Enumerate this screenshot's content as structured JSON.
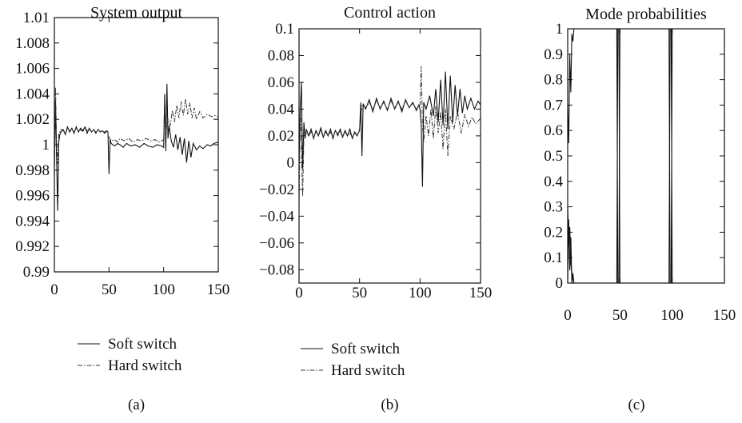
{
  "chart_data": [
    {
      "type": "line",
      "title": "System output",
      "xlabel": "",
      "ylabel": "",
      "xlim": [
        0,
        150
      ],
      "ylim": [
        0.99,
        1.01
      ],
      "xticks": [
        0,
        50,
        100,
        150
      ],
      "xtick_labels": [
        "0",
        "50",
        "100",
        "150"
      ],
      "yticks": [
        0.99,
        0.992,
        0.994,
        0.996,
        0.998,
        1.0,
        1.002,
        1.004,
        1.006,
        1.008,
        1.01
      ],
      "ytick_labels": [
        "0.99",
        "0.992",
        "0.994",
        "0.996",
        "0.998",
        "1",
        "1.002",
        "1.004",
        "1.006",
        "1.008",
        "1.01"
      ],
      "grid": false,
      "legend": "below",
      "caption": "(a)",
      "series": [
        {
          "name": "Soft switch",
          "style": "solid",
          "x": [
            0,
            1,
            2,
            3,
            4,
            5,
            6,
            8,
            10,
            12,
            14,
            16,
            18,
            20,
            22,
            24,
            26,
            28,
            30,
            32,
            34,
            36,
            38,
            40,
            42,
            44,
            46,
            48,
            49,
            50,
            51,
            52,
            55,
            58,
            60,
            63,
            66,
            70,
            74,
            78,
            82,
            86,
            90,
            94,
            98,
            100,
            101,
            102,
            103,
            104,
            105,
            107,
            109,
            111,
            113,
            115,
            117,
            119,
            121,
            123,
            125,
            127,
            130,
            133,
            136,
            140,
            143,
            146,
            150
          ],
          "y": [
            0.9975,
            1.0035,
            0.9992,
            0.9948,
            1.0002,
            1.0008,
            1.001,
            1.0012,
            1.0008,
            1.0014,
            1.001,
            1.0013,
            1.0009,
            1.0014,
            1.001,
            1.0013,
            1.0011,
            1.0014,
            1.0009,
            1.0013,
            1.001,
            1.0012,
            1.0009,
            1.0012,
            1.001,
            1.0011,
            1.0009,
            1.0011,
            1.001,
            0.9977,
            1.0004,
            1.0001,
            0.9999,
            1.0001,
            1.0,
            0.9998,
            1.0001,
            0.9999,
            1.0,
            0.9998,
            1.0001,
            0.9999,
            0.9998,
            1.0,
            0.9999,
            0.9998,
            1.004,
            0.9995,
            1.0048,
            1.0005,
            1.0015,
            1.0003,
            0.9998,
            1.0008,
            0.9996,
            1.0006,
            0.9992,
            1.0005,
            0.9986,
            1.0003,
            0.999,
            1.0001,
            0.9996,
            0.9999,
            0.9997,
            1.0,
            0.9999,
            1.0001,
            1.0002
          ]
        },
        {
          "name": "Hard switch",
          "style": "dash-dot",
          "x": [
            0,
            1,
            2,
            3,
            4,
            5,
            6,
            8,
            10,
            12,
            14,
            16,
            18,
            20,
            22,
            24,
            26,
            28,
            30,
            32,
            34,
            36,
            38,
            40,
            42,
            44,
            46,
            48,
            50,
            52,
            55,
            58,
            60,
            64,
            68,
            72,
            76,
            80,
            84,
            88,
            92,
            96,
            100,
            101,
            102,
            104,
            106,
            108,
            110,
            112,
            114,
            116,
            118,
            120,
            122,
            124,
            126,
            128,
            130,
            133,
            136,
            140,
            144,
            147,
            150
          ],
          "y": [
            0.998,
            1.0045,
            1.0005,
            0.9985,
            1.0008,
            1.001,
            1.0012,
            1.0011,
            1.001,
            1.0013,
            1.0011,
            1.0012,
            1.001,
            1.0013,
            1.0011,
            1.0012,
            1.001,
            1.0013,
            1.0011,
            1.0012,
            1.001,
            1.0012,
            1.001,
            1.0012,
            1.001,
            1.0011,
            1.001,
            1.0011,
            1.0006,
            1.0003,
            1.0004,
            1.0002,
            1.0005,
            1.0003,
            1.0005,
            1.0002,
            1.0004,
            1.0003,
            1.0005,
            1.0003,
            1.0004,
            1.0002,
            1.0004,
            1.0035,
            1.001,
            1.002,
            1.0015,
            1.0027,
            1.0018,
            1.0031,
            1.0021,
            1.0034,
            1.0023,
            1.0036,
            1.0024,
            1.0033,
            1.0021,
            1.0029,
            1.002,
            1.0026,
            1.0021,
            1.0024,
            1.0022,
            1.0023,
            1.0022
          ]
        }
      ]
    },
    {
      "type": "line",
      "title": "Control action",
      "xlabel": "",
      "ylabel": "",
      "xlim": [
        0,
        150
      ],
      "ylim": [
        -0.09,
        0.1
      ],
      "xticks": [
        0,
        50,
        100,
        150
      ],
      "xtick_labels": [
        "0",
        "50",
        "100",
        "150"
      ],
      "yticks": [
        -0.08,
        -0.06,
        -0.04,
        -0.02,
        0,
        0.02,
        0.04,
        0.06,
        0.08,
        0.1
      ],
      "ytick_labels": [
        "−0.08",
        "−0.06",
        "−0.04",
        "−0.02",
        "0",
        "0.02",
        "0.04",
        "0.06",
        "0.08",
        "0.1"
      ],
      "grid": false,
      "legend": "below",
      "caption": "(b)",
      "series": [
        {
          "name": "Soft switch",
          "style": "solid",
          "x": [
            0,
            1,
            2,
            3,
            4,
            5,
            6,
            8,
            10,
            12,
            14,
            16,
            18,
            20,
            22,
            24,
            26,
            28,
            30,
            32,
            34,
            36,
            38,
            40,
            42,
            44,
            46,
            48,
            50,
            51,
            52,
            53,
            55,
            58,
            61,
            64,
            67,
            70,
            73,
            76,
            79,
            82,
            85,
            88,
            91,
            94,
            97,
            99,
            100,
            101,
            102,
            103,
            105,
            108,
            111,
            113,
            115,
            117,
            119,
            121,
            123,
            125,
            127,
            129,
            131,
            133,
            135,
            137,
            139,
            142,
            145,
            148,
            150
          ],
          "y": [
            0.0,
            0.04,
            0.06,
            -0.005,
            0.03,
            0.018,
            0.025,
            0.02,
            0.025,
            0.018,
            0.024,
            0.02,
            0.026,
            0.019,
            0.024,
            0.02,
            0.025,
            0.018,
            0.024,
            0.021,
            0.025,
            0.019,
            0.024,
            0.02,
            0.025,
            0.018,
            0.023,
            0.02,
            0.024,
            0.045,
            0.005,
            0.044,
            0.04,
            0.047,
            0.038,
            0.048,
            0.04,
            0.046,
            0.039,
            0.048,
            0.04,
            0.046,
            0.038,
            0.047,
            0.041,
            0.045,
            0.039,
            0.043,
            0.04,
            0.028,
            -0.018,
            0.045,
            0.04,
            0.05,
            0.035,
            0.055,
            0.03,
            0.062,
            0.028,
            0.068,
            0.025,
            0.065,
            0.03,
            0.058,
            0.035,
            0.055,
            0.037,
            0.05,
            0.04,
            0.048,
            0.04,
            0.046,
            0.043
          ]
        },
        {
          "name": "Hard switch",
          "style": "dash-dot",
          "x": [
            0,
            1,
            2,
            3,
            4,
            6,
            8,
            10,
            12,
            14,
            16,
            18,
            20,
            22,
            24,
            26,
            28,
            30,
            32,
            34,
            36,
            38,
            40,
            42,
            44,
            46,
            48,
            50,
            52,
            55,
            58,
            61,
            64,
            67,
            70,
            73,
            76,
            79,
            82,
            85,
            88,
            91,
            94,
            97,
            100,
            101,
            102,
            103,
            105,
            107,
            109,
            111,
            113,
            115,
            117,
            119,
            121,
            123,
            125,
            128,
            131,
            134,
            137,
            140,
            143,
            146,
            150
          ],
          "y": [
            -0.04,
            0.045,
            0.01,
            -0.025,
            0.02,
            0.022,
            0.02,
            0.023,
            0.019,
            0.023,
            0.02,
            0.024,
            0.019,
            0.023,
            0.02,
            0.023,
            0.019,
            0.024,
            0.02,
            0.023,
            0.019,
            0.023,
            0.02,
            0.022,
            0.019,
            0.022,
            0.02,
            0.025,
            0.043,
            0.041,
            0.045,
            0.04,
            0.046,
            0.041,
            0.045,
            0.04,
            0.046,
            0.041,
            0.045,
            0.04,
            0.046,
            0.041,
            0.044,
            0.04,
            0.043,
            0.072,
            0.028,
            0.015,
            0.035,
            0.02,
            0.04,
            0.018,
            0.042,
            0.022,
            0.038,
            0.01,
            0.04,
            0.005,
            0.035,
            0.025,
            0.038,
            0.022,
            0.036,
            0.027,
            0.034,
            0.029,
            0.033
          ]
        }
      ]
    },
    {
      "type": "line",
      "title": "Mode probabilities",
      "xlabel": "",
      "ylabel": "",
      "xlim": [
        0,
        150
      ],
      "ylim": [
        0,
        1
      ],
      "xticks": [
        0,
        50,
        100,
        150
      ],
      "xtick_labels": [
        "0",
        "50",
        "100",
        "150"
      ],
      "yticks": [
        0,
        0.1,
        0.2,
        0.3,
        0.4,
        0.5,
        0.6,
        0.7,
        0.8,
        0.9,
        1
      ],
      "ytick_labels": [
        "0",
        "0.1",
        "0.2",
        "0.3",
        "0.4",
        "0.5",
        "0.6",
        "0.7",
        "0.8",
        "0.9",
        "1"
      ],
      "grid": false,
      "legend": "none",
      "caption": "(c)",
      "series": [
        {
          "style": "solid",
          "x": [
            0,
            1,
            2,
            3,
            4,
            5,
            6,
            8,
            47,
            48,
            49,
            50,
            52,
            97,
            98,
            99,
            100,
            102,
            150
          ],
          "y": [
            0.7,
            0.55,
            0.9,
            0.75,
            0.98,
            0.95,
            1.0,
            1.0,
            1.0,
            0.0,
            0.0,
            1.0,
            1.0,
            1.0,
            0.0,
            0.0,
            1.0,
            1.0,
            1.0
          ]
        },
        {
          "style": "solid",
          "x": [
            0,
            1,
            2,
            3,
            4,
            5,
            6,
            8,
            47,
            48,
            49,
            50,
            52,
            97,
            98,
            99,
            100,
            102,
            150
          ],
          "y": [
            0.3,
            0.15,
            0.22,
            0.08,
            0.03,
            0.02,
            0.0,
            0.0,
            0.0,
            1.0,
            1.0,
            0.0,
            0.0,
            0.0,
            1.0,
            1.0,
            0.0,
            0.0,
            0.0
          ]
        },
        {
          "style": "solid",
          "x": [
            0,
            1,
            2,
            3,
            4,
            5,
            6,
            8,
            150
          ],
          "y": [
            0.0,
            0.25,
            0.05,
            0.18,
            0.0,
            0.04,
            0.0,
            0.0,
            0.0
          ]
        }
      ]
    }
  ]
}
